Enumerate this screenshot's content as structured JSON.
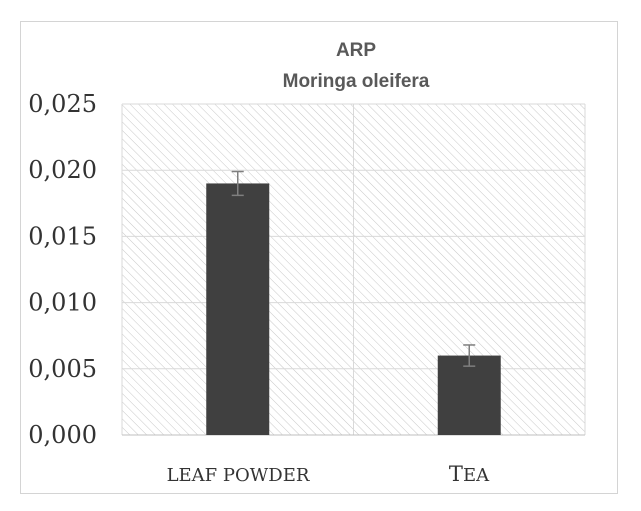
{
  "chart_data": {
    "type": "bar",
    "title": "ARP",
    "subtitle": "Moringa oleifera",
    "xlabel": "",
    "ylabel": "",
    "categories": [
      "LEAF POWDER",
      "TEA"
    ],
    "values": [
      0.019,
      0.006
    ],
    "error": [
      0.0009,
      0.0008
    ],
    "ylim": [
      0,
      0.025
    ],
    "y_ticks": [
      "0,000",
      "0,005",
      "0,010",
      "0,015",
      "0,020",
      "0,025"
    ],
    "tick_values": [
      0,
      0.005,
      0.01,
      0.015,
      0.02,
      0.025
    ],
    "grid": true,
    "legend": "none",
    "colors": {
      "bar": "#404040",
      "grid": "#d9d9d9",
      "hatch": "#c8c8c8",
      "error_bar": "#7f7f7f"
    }
  }
}
